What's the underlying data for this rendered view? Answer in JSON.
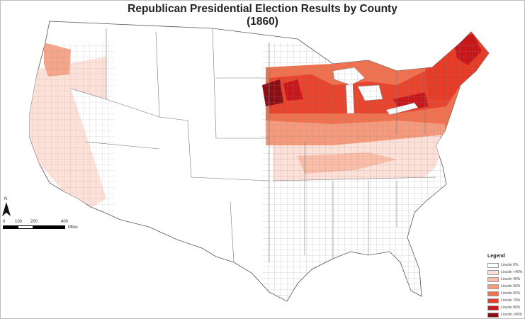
{
  "title": "Republican Presidential Election Results by County",
  "subtitle": "(1860)",
  "north_label": "N",
  "scale": {
    "labels": [
      "0",
      "100",
      "200",
      "400"
    ],
    "units": "Miles"
  },
  "legend": {
    "title": "Legend",
    "items": [
      {
        "label": "Lincoln 0%",
        "color": "#ffffff"
      },
      {
        "label": "Lincoln <40%",
        "color": "#fde0d8"
      },
      {
        "label": "Lincoln 40%",
        "color": "#f9bda8"
      },
      {
        "label": "Lincoln 50%",
        "color": "#f59a7c"
      },
      {
        "label": "Lincoln 60%",
        "color": "#f0714f"
      },
      {
        "label": "Lincoln 70%",
        "color": "#e63b27"
      },
      {
        "label": "Lincoln 80%",
        "color": "#c7171b"
      },
      {
        "label": "Lincoln >90%",
        "color": "#8b0e14"
      }
    ]
  },
  "regions": [
    {
      "name": "west-coast",
      "share": "<40%"
    },
    {
      "name": "oregon-northwest",
      "share": "50%"
    },
    {
      "name": "upper-midwest",
      "share": "60%"
    },
    {
      "name": "great-lakes",
      "share": "70%"
    },
    {
      "name": "new-england",
      "share": "70%"
    },
    {
      "name": "border-states",
      "share": "<40%"
    },
    {
      "name": "south",
      "share": "0%"
    }
  ]
}
